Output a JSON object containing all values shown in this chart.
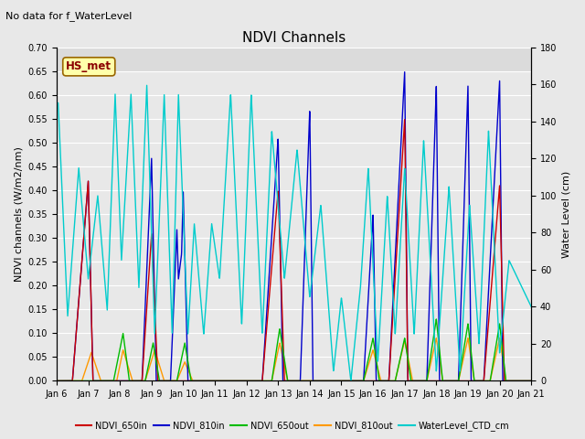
{
  "title": "NDVI Channels",
  "no_data_text": "No data for f_WaterLevel",
  "station_label": "HS_met",
  "ylabel_left": "NDVI channels (W/m2/nm)",
  "ylabel_right": "Water Level (cm)",
  "ylim_left": [
    0.0,
    0.7
  ],
  "ylim_right": [
    0,
    180
  ],
  "yticks_left": [
    0.0,
    0.05,
    0.1,
    0.15,
    0.2,
    0.25,
    0.3,
    0.35,
    0.4,
    0.45,
    0.5,
    0.55,
    0.6,
    0.65,
    0.7
  ],
  "yticks_right": [
    0,
    20,
    40,
    60,
    80,
    100,
    120,
    140,
    160,
    180
  ],
  "background_color": "#e8e8e8",
  "plot_bg_lower": "#d8d8d8",
  "plot_bg_upper": "#e8e8e8",
  "grid_color": "#f8f8f8",
  "legend_entries": [
    "NDVI_650in",
    "NDVI_810in",
    "NDVI_650out",
    "NDVI_810out",
    "WaterLevel_CTD_cm"
  ],
  "line_colors": [
    "#cc0000",
    "#0000cc",
    "#00bb00",
    "#ff9900",
    "#00cccc"
  ],
  "xstart_day": 6,
  "xend_day": 21,
  "xtick_days": [
    6,
    7,
    8,
    9,
    10,
    11,
    12,
    13,
    14,
    15,
    16,
    17,
    18,
    19,
    20,
    21
  ],
  "title_fontsize": 11,
  "no_data_fontsize": 8,
  "ylabel_fontsize": 8,
  "tick_fontsize": 7,
  "legend_fontsize": 7
}
